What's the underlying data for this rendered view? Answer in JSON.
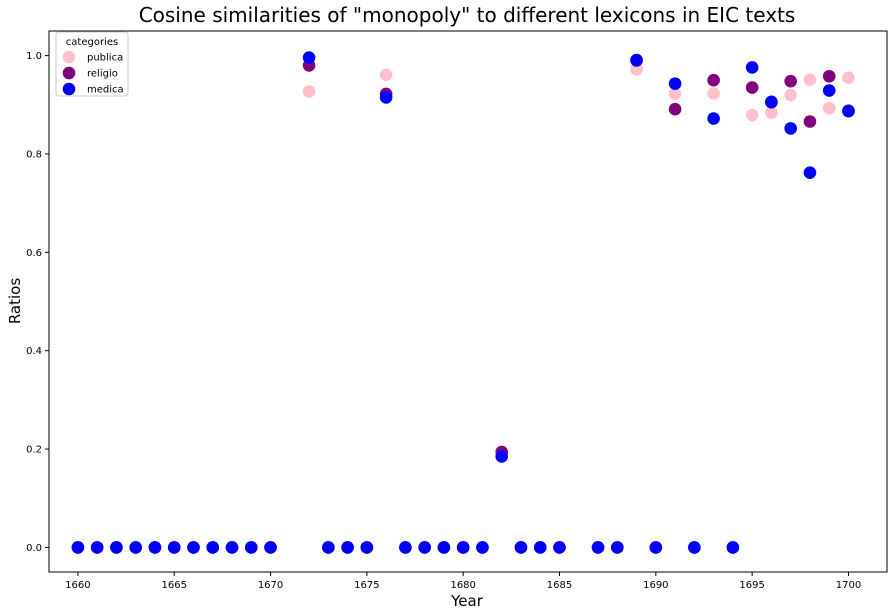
{
  "chart_data": {
    "type": "scatter",
    "title": "Cosine similarities of \"monopoly\" to different lexicons in EIC texts",
    "xlabel": "Year",
    "ylabel": "Ratios",
    "xlim": [
      1658.5,
      1702.0
    ],
    "ylim": [
      -0.05,
      1.05
    ],
    "xticks": [
      1660,
      1665,
      1670,
      1675,
      1680,
      1685,
      1690,
      1695,
      1700
    ],
    "yticks": [
      0.0,
      0.2,
      0.4,
      0.6,
      0.8,
      1.0
    ],
    "xtick_labels": [
      "1660",
      "1665",
      "1670",
      "1675",
      "1680",
      "1685",
      "1690",
      "1695",
      "1700"
    ],
    "ytick_labels": [
      "0.0",
      "0.2",
      "0.4",
      "0.6",
      "0.8",
      "1.0"
    ],
    "grid": false,
    "legend": {
      "title": "categories",
      "placement": "top-left"
    },
    "series": [
      {
        "name": "publica",
        "color": "#ffc0cb",
        "points": [
          [
            1660,
            0
          ],
          [
            1661,
            0
          ],
          [
            1662,
            0
          ],
          [
            1663,
            0
          ],
          [
            1664,
            0
          ],
          [
            1665,
            0
          ],
          [
            1666,
            0
          ],
          [
            1667,
            0
          ],
          [
            1668,
            0
          ],
          [
            1669,
            0
          ],
          [
            1670,
            0
          ],
          [
            1672,
            0.927
          ],
          [
            1673,
            0
          ],
          [
            1674,
            0
          ],
          [
            1675,
            0
          ],
          [
            1676,
            0.961
          ],
          [
            1677,
            0
          ],
          [
            1678,
            0
          ],
          [
            1679,
            0
          ],
          [
            1680,
            0
          ],
          [
            1681,
            0
          ],
          [
            1682,
            0.19
          ],
          [
            1683,
            0
          ],
          [
            1684,
            0
          ],
          [
            1685,
            0
          ],
          [
            1687,
            0
          ],
          [
            1688,
            0
          ],
          [
            1689,
            0.972
          ],
          [
            1690,
            0
          ],
          [
            1691,
            0.922
          ],
          [
            1692,
            0
          ],
          [
            1693,
            0.923
          ],
          [
            1694,
            0
          ],
          [
            1695,
            0.879
          ],
          [
            1696,
            0.884
          ],
          [
            1697,
            0.92
          ],
          [
            1698,
            0.951
          ],
          [
            1699,
            0.893
          ],
          [
            1700,
            0.955
          ]
        ]
      },
      {
        "name": "religio",
        "color": "#800080",
        "points": [
          [
            1660,
            0
          ],
          [
            1661,
            0
          ],
          [
            1662,
            0
          ],
          [
            1663,
            0
          ],
          [
            1664,
            0
          ],
          [
            1665,
            0
          ],
          [
            1666,
            0
          ],
          [
            1667,
            0
          ],
          [
            1668,
            0
          ],
          [
            1669,
            0
          ],
          [
            1670,
            0
          ],
          [
            1672,
            0.98
          ],
          [
            1673,
            0
          ],
          [
            1674,
            0
          ],
          [
            1675,
            0
          ],
          [
            1676,
            0.922
          ],
          [
            1677,
            0
          ],
          [
            1678,
            0
          ],
          [
            1679,
            0
          ],
          [
            1680,
            0
          ],
          [
            1681,
            0
          ],
          [
            1682,
            0.194
          ],
          [
            1683,
            0
          ],
          [
            1684,
            0
          ],
          [
            1685,
            0
          ],
          [
            1687,
            0
          ],
          [
            1688,
            0
          ],
          [
            1689,
            0.99
          ],
          [
            1690,
            0
          ],
          [
            1691,
            0.891
          ],
          [
            1692,
            0
          ],
          [
            1693,
            0.95
          ],
          [
            1694,
            0
          ],
          [
            1695,
            0.935
          ],
          [
            1696,
            0.905
          ],
          [
            1697,
            0.948
          ],
          [
            1698,
            0.866
          ],
          [
            1699,
            0.958
          ],
          [
            1700,
            0.888
          ]
        ]
      },
      {
        "name": "medica",
        "color": "#0000ff",
        "points": [
          [
            1660,
            0
          ],
          [
            1661,
            0
          ],
          [
            1662,
            0
          ],
          [
            1663,
            0
          ],
          [
            1664,
            0
          ],
          [
            1665,
            0
          ],
          [
            1666,
            0
          ],
          [
            1667,
            0
          ],
          [
            1668,
            0
          ],
          [
            1669,
            0
          ],
          [
            1670,
            0
          ],
          [
            1672,
            0.996
          ],
          [
            1673,
            0
          ],
          [
            1674,
            0
          ],
          [
            1675,
            0
          ],
          [
            1676,
            0.915
          ],
          [
            1677,
            0
          ],
          [
            1678,
            0
          ],
          [
            1679,
            0
          ],
          [
            1680,
            0
          ],
          [
            1681,
            0
          ],
          [
            1682,
            0.185
          ],
          [
            1683,
            0
          ],
          [
            1684,
            0
          ],
          [
            1685,
            0
          ],
          [
            1687,
            0
          ],
          [
            1688,
            0
          ],
          [
            1689,
            0.991
          ],
          [
            1690,
            0
          ],
          [
            1691,
            0.943
          ],
          [
            1692,
            0
          ],
          [
            1693,
            0.872
          ],
          [
            1694,
            0
          ],
          [
            1695,
            0.976
          ],
          [
            1696,
            0.906
          ],
          [
            1697,
            0.852
          ],
          [
            1698,
            0.762
          ],
          [
            1699,
            0.929
          ],
          [
            1700,
            0.887
          ]
        ]
      }
    ]
  }
}
